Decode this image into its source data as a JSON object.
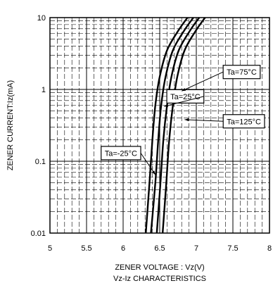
{
  "chart_data": {
    "type": "line",
    "xlabel": "ZENER VOLTAGE : Vz(V)",
    "ylabel": "ZENER CURRENT:Iz(mA)",
    "caption": "Vz-Iz CHARACTERISTICS",
    "xlim": [
      5,
      8
    ],
    "ylim": [
      0.01,
      10
    ],
    "yscale": "log",
    "grid": true,
    "x_ticks": [
      5,
      5.5,
      6,
      6.5,
      7,
      7.5,
      8
    ],
    "x_tick_labels": [
      "5",
      "5.5",
      "6",
      "6.5",
      "7",
      "7.5",
      "8"
    ],
    "y_ticks": [
      0.01,
      0.1,
      1,
      10
    ],
    "y_tick_labels": [
      "0.01",
      "0.1",
      "1",
      "10"
    ],
    "series": [
      {
        "name": "Ta=-25°C",
        "points": [
          [
            6.31,
            0.01
          ],
          [
            6.36,
            0.05
          ],
          [
            6.4,
            0.2
          ],
          [
            6.44,
            0.6
          ],
          [
            6.5,
            1.5
          ],
          [
            6.6,
            3.5
          ],
          [
            6.75,
            6.5
          ],
          [
            6.88,
            10
          ]
        ]
      },
      {
        "name": "Ta=25°C",
        "points": [
          [
            6.38,
            0.01
          ],
          [
            6.44,
            0.05
          ],
          [
            6.48,
            0.2
          ],
          [
            6.52,
            0.6
          ],
          [
            6.58,
            1.5
          ],
          [
            6.68,
            3.5
          ],
          [
            6.83,
            6.5
          ],
          [
            6.96,
            10
          ]
        ]
      },
      {
        "name": "Ta=75°C",
        "points": [
          [
            6.46,
            0.01
          ],
          [
            6.51,
            0.05
          ],
          [
            6.55,
            0.2
          ],
          [
            6.6,
            0.6
          ],
          [
            6.66,
            1.5
          ],
          [
            6.76,
            3.5
          ],
          [
            6.91,
            6.5
          ],
          [
            7.04,
            10
          ]
        ]
      },
      {
        "name": "Ta=125°C",
        "points": [
          [
            6.54,
            0.01
          ],
          [
            6.59,
            0.05
          ],
          [
            6.63,
            0.2
          ],
          [
            6.68,
            0.6
          ],
          [
            6.74,
            1.5
          ],
          [
            6.84,
            3.5
          ],
          [
            6.99,
            6.5
          ],
          [
            7.12,
            10
          ]
        ]
      }
    ],
    "annotations": [
      {
        "text": "Ta=25°C",
        "box": [
          6.85,
          0.8
        ]
      },
      {
        "text": "Ta=75°C",
        "box": [
          7.62,
          1.75
        ]
      },
      {
        "text": "Ta=125°C",
        "box": [
          7.65,
          0.36
        ]
      },
      {
        "text": "Ta=-25°C",
        "box": [
          5.97,
          0.13
        ]
      }
    ]
  }
}
